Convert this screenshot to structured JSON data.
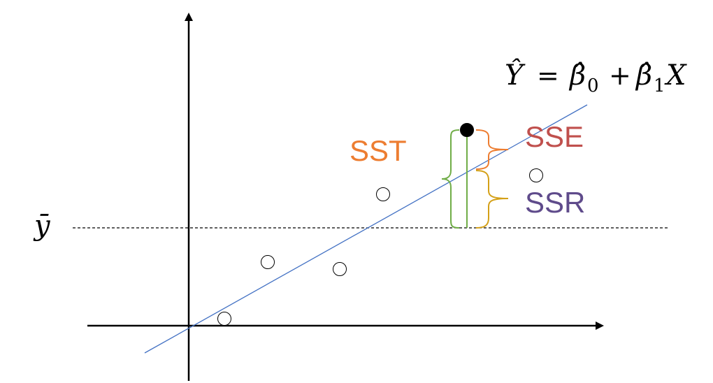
{
  "equation": {
    "y_hat": "Ŷ",
    "equals": "=",
    "beta": "β̂",
    "sub0": "0",
    "plus": "+",
    "sub1": "1",
    "x": "X"
  },
  "y_bar_label": "ȳ",
  "labels": {
    "sst": "SST",
    "sse": "SSE",
    "ssr": "SSR"
  },
  "colors": {
    "regression_line": "#4472c4",
    "sst": "#ed7d31",
    "sse": "#c0504d",
    "ssr": "#5f4b8b",
    "sst_brace": "#70ad47",
    "residual_brace": "#ed7d31",
    "explained_brace": "#d4a017",
    "deviation_line": "#70ad47"
  }
}
